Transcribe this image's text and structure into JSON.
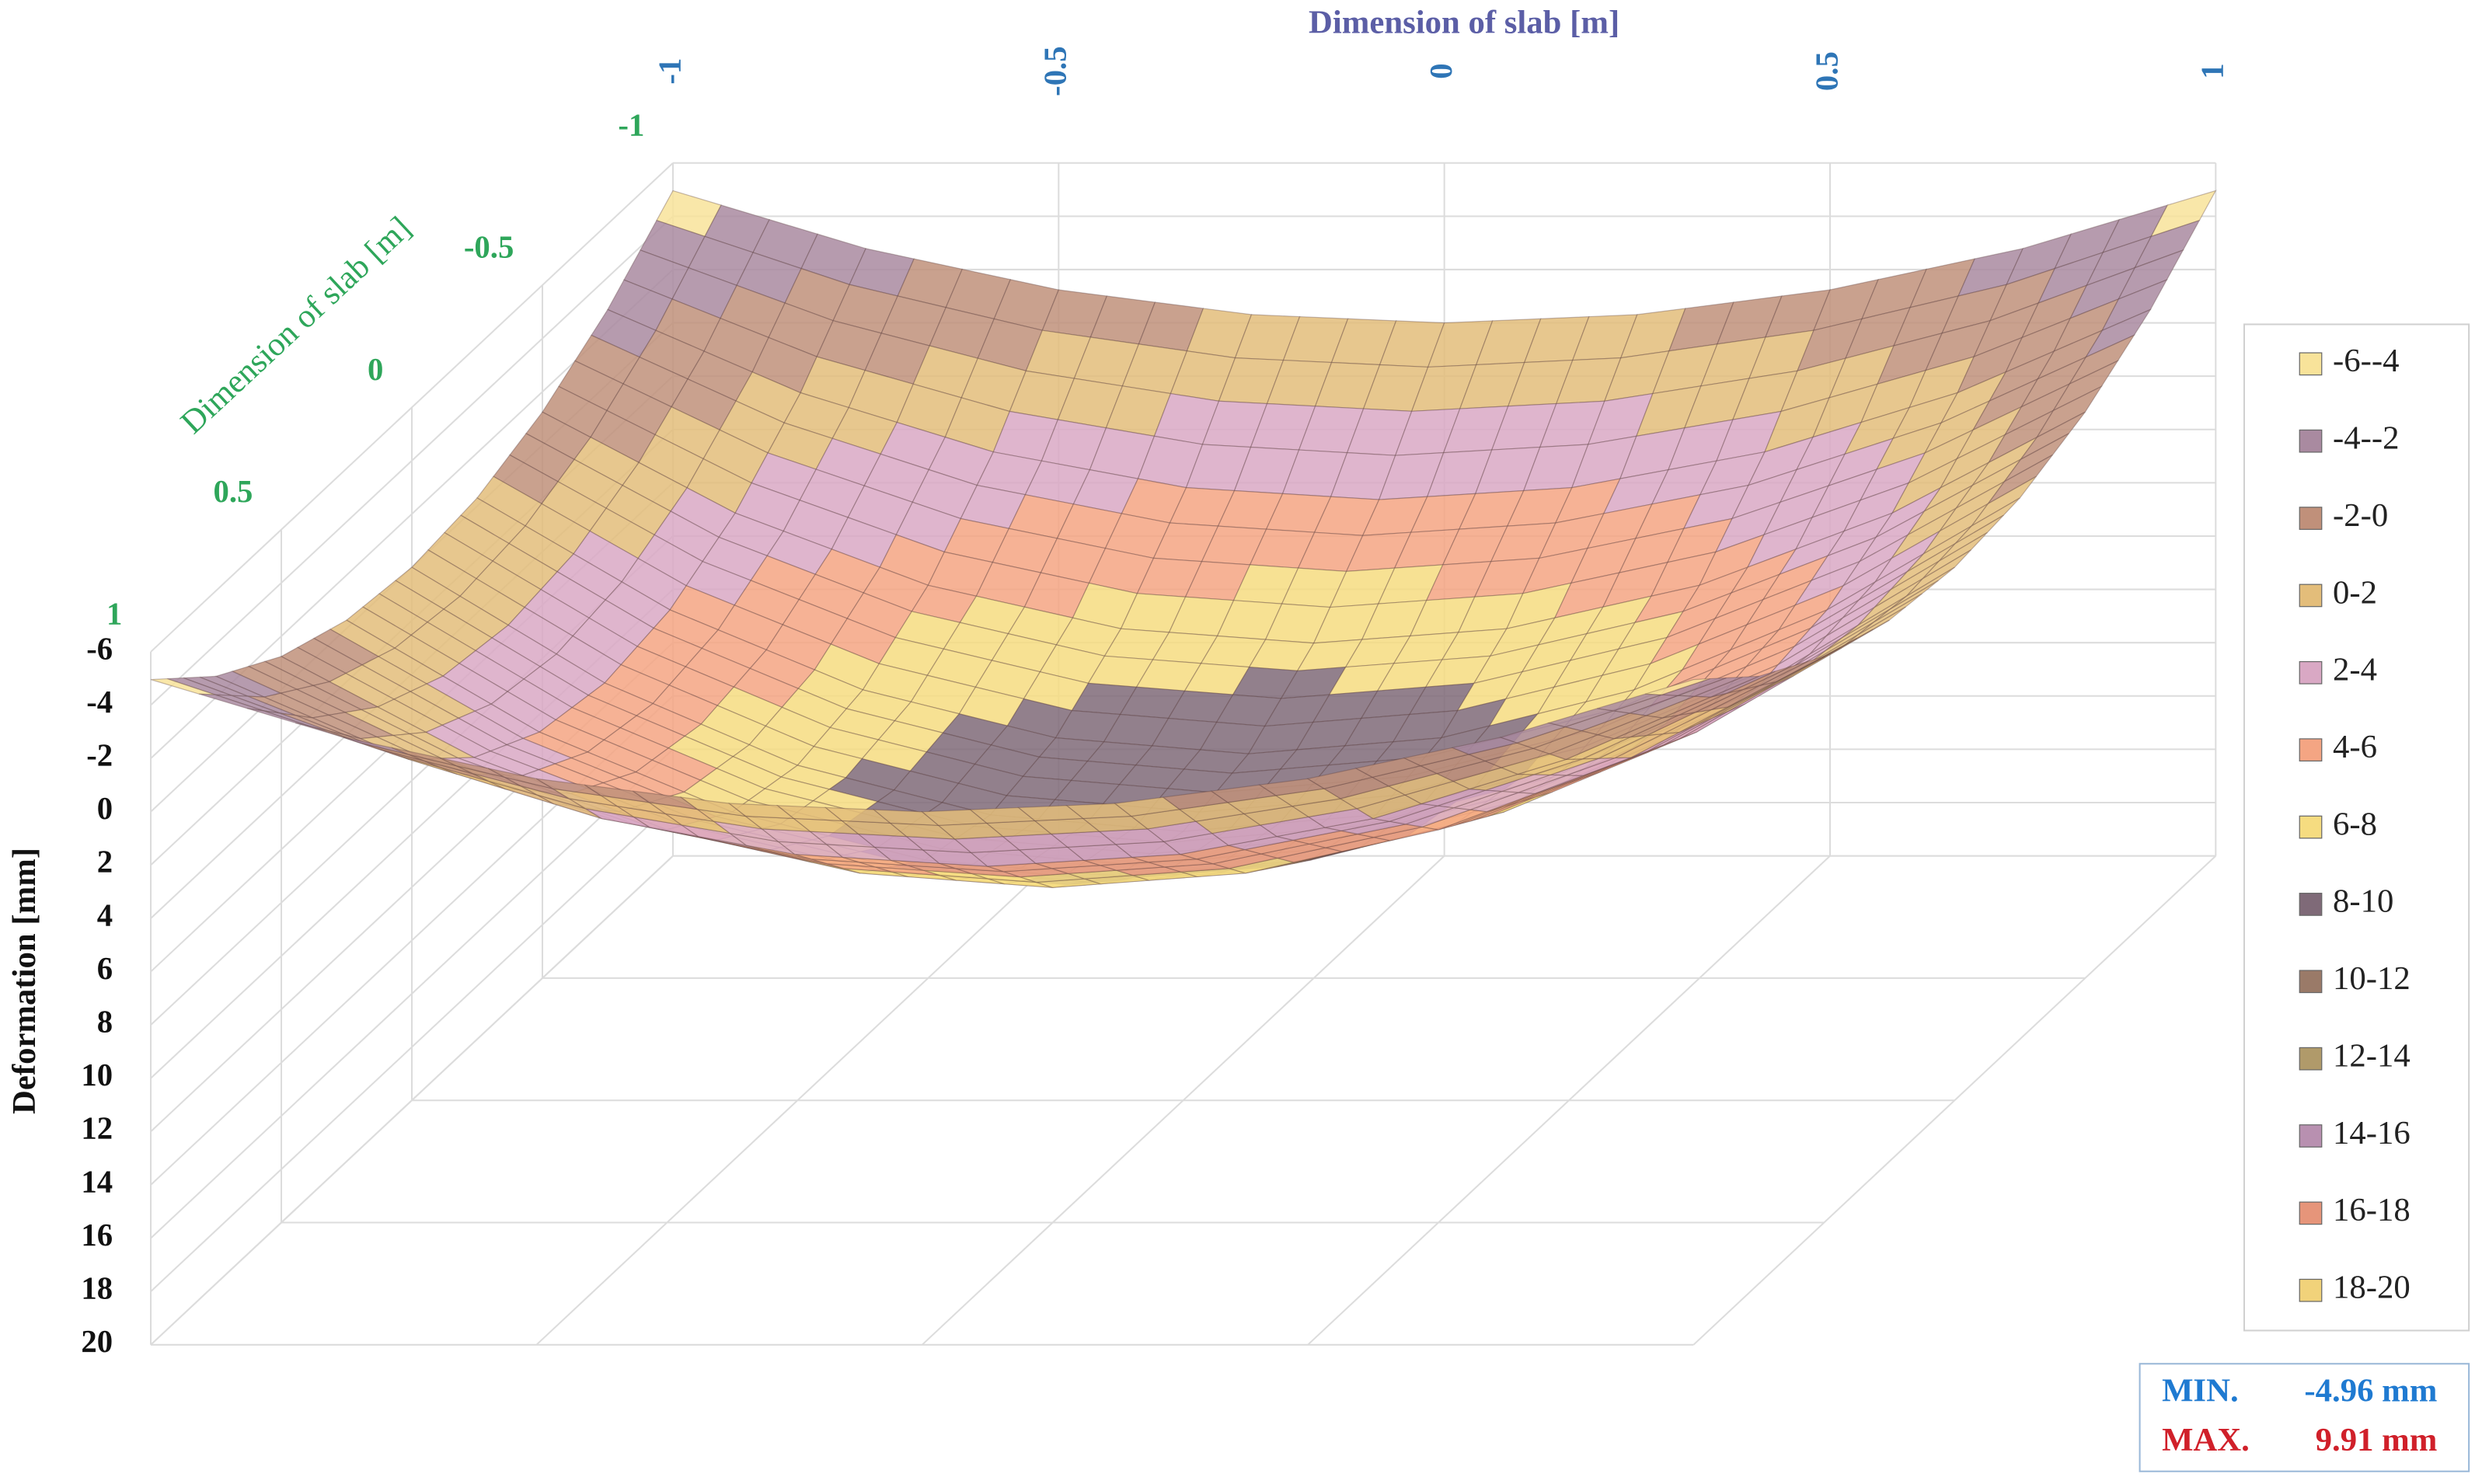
{
  "chart_data": {
    "type": "surface",
    "x_label": "Dimension of slab [m]",
    "y_label": "Dimension of slab [m]",
    "z_label": "Deformation [mm]",
    "x": [
      -1,
      -0.75,
      -0.5,
      -0.25,
      0,
      0.25,
      0.5,
      0.75,
      1
    ],
    "y": [
      -1,
      -0.75,
      -0.5,
      -0.25,
      0,
      0.25,
      0.5,
      0.75,
      1
    ],
    "z": [
      [
        -4.96,
        -2.79,
        -1.24,
        -0.31,
        0,
        -0.31,
        -1.24,
        -2.79,
        -4.96
      ],
      [
        -2.79,
        0.33,
        2.55,
        3.89,
        4.34,
        3.89,
        2.55,
        0.33,
        -2.79
      ],
      [
        -1.24,
        2.55,
        5.26,
        6.89,
        7.43,
        6.89,
        5.26,
        2.55,
        -1.24
      ],
      [
        -0.31,
        3.89,
        6.89,
        8.69,
        9.29,
        8.69,
        6.89,
        3.89,
        -0.31
      ],
      [
        0,
        4.34,
        7.43,
        9.29,
        9.91,
        9.29,
        7.43,
        4.34,
        0
      ],
      [
        -0.31,
        3.89,
        6.89,
        8.69,
        9.29,
        8.69,
        6.89,
        3.89,
        -0.31
      ],
      [
        -1.24,
        2.55,
        5.26,
        6.89,
        7.43,
        6.89,
        5.26,
        2.55,
        -1.24
      ],
      [
        -2.79,
        0.33,
        2.55,
        3.89,
        4.34,
        3.89,
        2.55,
        0.33,
        -2.79
      ],
      [
        -4.96,
        -2.79,
        -1.24,
        -0.31,
        0,
        -0.31,
        -1.24,
        -2.79,
        -4.96
      ]
    ],
    "xlim": [
      -1,
      1
    ],
    "ylim": [
      -1,
      1
    ],
    "zlim": [
      -6,
      20
    ],
    "xticks": [
      -1,
      -0.5,
      0,
      0.5,
      1
    ],
    "yticks": [
      -1,
      -0.5,
      0,
      0.5,
      1
    ],
    "zticks": [
      -6,
      -4,
      -2,
      0,
      2,
      4,
      6,
      8,
      10,
      12,
      14,
      16,
      18,
      20
    ],
    "z_reversed": true,
    "grid": true,
    "legend": "right",
    "bands": [
      {
        "name": "-6--4",
        "color": "#f8e39a",
        "min": -6,
        "max": -4
      },
      {
        "name": "-4--2",
        "color": "#a98aa0",
        "min": -4,
        "max": -2
      },
      {
        "name": "-2-0",
        "color": "#c0907a",
        "min": -2,
        "max": 0
      },
      {
        "name": "0-2",
        "color": "#e3bd7a",
        "min": 0,
        "max": 2
      },
      {
        "name": "2-4",
        "color": "#d9a8c4",
        "min": 2,
        "max": 4
      },
      {
        "name": "4-6",
        "color": "#f4a583",
        "min": 4,
        "max": 6
      },
      {
        "name": "6-8",
        "color": "#f6dc80",
        "min": 6,
        "max": 8
      },
      {
        "name": "8-10",
        "color": "#7f6a78",
        "min": 8,
        "max": 10
      },
      {
        "name": "10-12",
        "color": "#9a7a68",
        "min": 10,
        "max": 12
      },
      {
        "name": "12-14",
        "color": "#b09a6a",
        "min": 12,
        "max": 14
      },
      {
        "name": "14-16",
        "color": "#b890b0",
        "min": 14,
        "max": 16
      },
      {
        "name": "16-18",
        "color": "#e6957a",
        "min": 16,
        "max": 18
      },
      {
        "name": "18-20",
        "color": "#f1d27a",
        "min": 18,
        "max": 20
      }
    ]
  },
  "stats": [
    {
      "label": "MIN.",
      "value": "-4.96 mm",
      "color": "#1f7ad1"
    },
    {
      "label": "MAX.",
      "value": "9.91 mm",
      "color": "#d0202a"
    }
  ]
}
